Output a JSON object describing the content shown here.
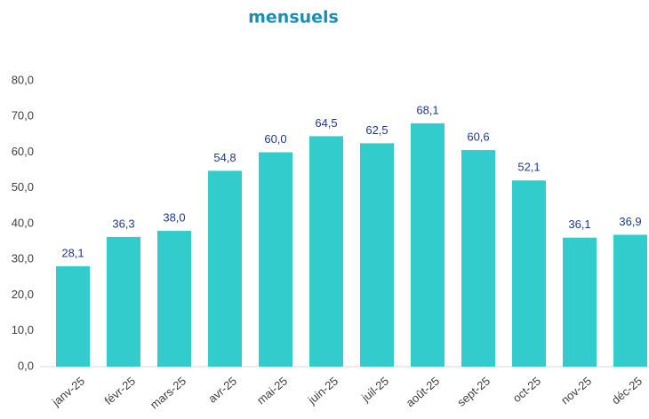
{
  "chart_data": {
    "type": "bar",
    "title": "mensuels",
    "categories": [
      "janv-25",
      "févr-25",
      "mars-25",
      "avr-25",
      "mai-25",
      "juin-25",
      "juil-25",
      "août-25",
      "sept-25",
      "oct-25",
      "nov-25",
      "déc-25"
    ],
    "values": [
      28.1,
      36.3,
      38.0,
      54.8,
      60.0,
      64.5,
      62.5,
      68.1,
      60.6,
      52.1,
      36.1,
      36.9
    ],
    "value_labels": [
      "28,1",
      "36,3",
      "38,0",
      "54,8",
      "60,0",
      "64,5",
      "62,5",
      "68,1",
      "60,6",
      "52,1",
      "36,1",
      "36,9"
    ],
    "color": "#33cccc",
    "ylim": [
      0,
      80
    ],
    "yticks": [
      {
        "value": 0,
        "label": "0,0"
      },
      {
        "value": 10,
        "label": "10,0"
      },
      {
        "value": 20,
        "label": "20,0"
      },
      {
        "value": 30,
        "label": "30,0"
      },
      {
        "value": 40,
        "label": "40,0"
      },
      {
        "value": 50,
        "label": "50,0"
      },
      {
        "value": 60,
        "label": "60,0"
      },
      {
        "value": 70,
        "label": "70,0"
      },
      {
        "value": 80,
        "label": "80,0"
      }
    ],
    "grid": false
  }
}
